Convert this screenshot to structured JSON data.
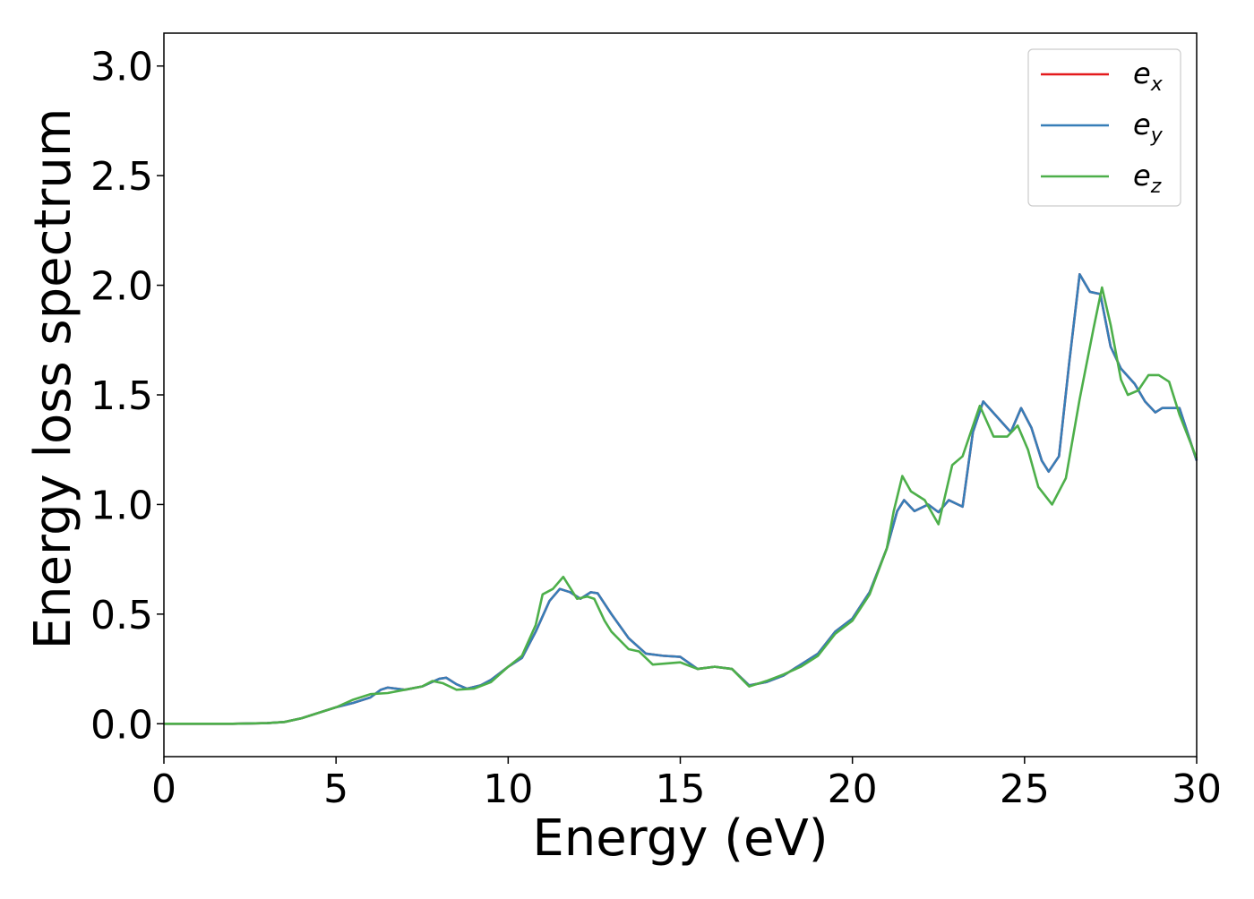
{
  "chart_data": {
    "type": "line",
    "xlabel": "Energy (eV)",
    "ylabel": "Energy loss spectrum",
    "xlim": [
      0,
      30
    ],
    "ylim": [
      -0.15,
      3.15
    ],
    "xticks": [
      0,
      5,
      10,
      15,
      20,
      25,
      30
    ],
    "yticks": [
      0.0,
      0.5,
      1.0,
      1.5,
      2.0,
      2.5,
      3.0
    ],
    "xtick_labels": [
      "0",
      "5",
      "10",
      "15",
      "20",
      "25",
      "30"
    ],
    "ytick_labels": [
      "0.0",
      "0.5",
      "1.0",
      "1.5",
      "2.0",
      "2.5",
      "3.0"
    ],
    "grid": false,
    "legend_position": "top-right",
    "series": [
      {
        "name": "e",
        "subscript": "x",
        "color": "#e41a1c",
        "points": [
          [
            0,
            0
          ],
          [
            2,
            0
          ],
          [
            3,
            0.003
          ],
          [
            3.5,
            0.008
          ],
          [
            4,
            0.025
          ],
          [
            4.5,
            0.05
          ],
          [
            5,
            0.075
          ],
          [
            5.5,
            0.095
          ],
          [
            6,
            0.12
          ],
          [
            6.3,
            0.155
          ],
          [
            6.5,
            0.165
          ],
          [
            7,
            0.155
          ],
          [
            7.5,
            0.17
          ],
          [
            8,
            0.205
          ],
          [
            8.2,
            0.21
          ],
          [
            8.5,
            0.18
          ],
          [
            8.8,
            0.16
          ],
          [
            9.2,
            0.175
          ],
          [
            9.5,
            0.2
          ],
          [
            10,
            0.26
          ],
          [
            10.4,
            0.3
          ],
          [
            10.8,
            0.42
          ],
          [
            11.2,
            0.56
          ],
          [
            11.5,
            0.615
          ],
          [
            11.8,
            0.6
          ],
          [
            12.1,
            0.57
          ],
          [
            12.4,
            0.6
          ],
          [
            12.6,
            0.595
          ],
          [
            13,
            0.5
          ],
          [
            13.5,
            0.39
          ],
          [
            14,
            0.32
          ],
          [
            14.5,
            0.31
          ],
          [
            15,
            0.305
          ],
          [
            15.5,
            0.25
          ],
          [
            16,
            0.26
          ],
          [
            16.5,
            0.25
          ],
          [
            17,
            0.175
          ],
          [
            17.5,
            0.19
          ],
          [
            18,
            0.22
          ],
          [
            18.5,
            0.27
          ],
          [
            19,
            0.32
          ],
          [
            19.5,
            0.42
          ],
          [
            20,
            0.48
          ],
          [
            20.5,
            0.6
          ],
          [
            21,
            0.8
          ],
          [
            21.3,
            0.97
          ],
          [
            21.5,
            1.02
          ],
          [
            21.8,
            0.97
          ],
          [
            22.2,
            1.0
          ],
          [
            22.5,
            0.965
          ],
          [
            22.8,
            1.02
          ],
          [
            23.2,
            0.99
          ],
          [
            23.5,
            1.33
          ],
          [
            23.8,
            1.47
          ],
          [
            24.2,
            1.4
          ],
          [
            24.6,
            1.33
          ],
          [
            24.9,
            1.44
          ],
          [
            25.2,
            1.35
          ],
          [
            25.5,
            1.2
          ],
          [
            25.7,
            1.15
          ],
          [
            26,
            1.22
          ],
          [
            26.3,
            1.65
          ],
          [
            26.6,
            2.05
          ],
          [
            26.9,
            1.97
          ],
          [
            27.2,
            1.96
          ],
          [
            27.5,
            1.72
          ],
          [
            27.8,
            1.62
          ],
          [
            28.2,
            1.55
          ],
          [
            28.5,
            1.47
          ],
          [
            28.8,
            1.42
          ],
          [
            29,
            1.44
          ],
          [
            29.5,
            1.44
          ],
          [
            30,
            1.2
          ]
        ]
      },
      {
        "name": "e",
        "subscript": "y",
        "color": "#377eb8",
        "points": [
          [
            0,
            0
          ],
          [
            2,
            0
          ],
          [
            3,
            0.003
          ],
          [
            3.5,
            0.008
          ],
          [
            4,
            0.025
          ],
          [
            4.5,
            0.05
          ],
          [
            5,
            0.075
          ],
          [
            5.5,
            0.095
          ],
          [
            6,
            0.12
          ],
          [
            6.3,
            0.155
          ],
          [
            6.5,
            0.165
          ],
          [
            7,
            0.155
          ],
          [
            7.5,
            0.17
          ],
          [
            8,
            0.205
          ],
          [
            8.2,
            0.21
          ],
          [
            8.5,
            0.18
          ],
          [
            8.8,
            0.16
          ],
          [
            9.2,
            0.175
          ],
          [
            9.5,
            0.2
          ],
          [
            10,
            0.26
          ],
          [
            10.4,
            0.3
          ],
          [
            10.8,
            0.42
          ],
          [
            11.2,
            0.56
          ],
          [
            11.5,
            0.615
          ],
          [
            11.8,
            0.6
          ],
          [
            12.1,
            0.57
          ],
          [
            12.4,
            0.6
          ],
          [
            12.6,
            0.595
          ],
          [
            13,
            0.5
          ],
          [
            13.5,
            0.39
          ],
          [
            14,
            0.32
          ],
          [
            14.5,
            0.31
          ],
          [
            15,
            0.305
          ],
          [
            15.5,
            0.25
          ],
          [
            16,
            0.26
          ],
          [
            16.5,
            0.25
          ],
          [
            17,
            0.175
          ],
          [
            17.5,
            0.19
          ],
          [
            18,
            0.22
          ],
          [
            18.5,
            0.27
          ],
          [
            19,
            0.32
          ],
          [
            19.5,
            0.42
          ],
          [
            20,
            0.48
          ],
          [
            20.5,
            0.6
          ],
          [
            21,
            0.8
          ],
          [
            21.3,
            0.97
          ],
          [
            21.5,
            1.02
          ],
          [
            21.8,
            0.97
          ],
          [
            22.2,
            1.0
          ],
          [
            22.5,
            0.965
          ],
          [
            22.8,
            1.02
          ],
          [
            23.2,
            0.99
          ],
          [
            23.5,
            1.33
          ],
          [
            23.8,
            1.47
          ],
          [
            24.2,
            1.4
          ],
          [
            24.6,
            1.33
          ],
          [
            24.9,
            1.44
          ],
          [
            25.2,
            1.35
          ],
          [
            25.5,
            1.2
          ],
          [
            25.7,
            1.15
          ],
          [
            26,
            1.22
          ],
          [
            26.3,
            1.65
          ],
          [
            26.6,
            2.05
          ],
          [
            26.9,
            1.97
          ],
          [
            27.2,
            1.96
          ],
          [
            27.5,
            1.72
          ],
          [
            27.8,
            1.62
          ],
          [
            28.2,
            1.55
          ],
          [
            28.5,
            1.47
          ],
          [
            28.8,
            1.42
          ],
          [
            29,
            1.44
          ],
          [
            29.5,
            1.44
          ],
          [
            30,
            1.2
          ]
        ]
      },
      {
        "name": "e",
        "subscript": "z",
        "color": "#4daf4a",
        "points": [
          [
            0,
            0
          ],
          [
            2,
            0
          ],
          [
            3,
            0.003
          ],
          [
            3.5,
            0.008
          ],
          [
            4,
            0.025
          ],
          [
            4.5,
            0.05
          ],
          [
            5,
            0.075
          ],
          [
            5.5,
            0.11
          ],
          [
            6,
            0.135
          ],
          [
            6.5,
            0.14
          ],
          [
            7,
            0.155
          ],
          [
            7.5,
            0.17
          ],
          [
            7.8,
            0.195
          ],
          [
            8.1,
            0.185
          ],
          [
            8.5,
            0.155
          ],
          [
            9,
            0.16
          ],
          [
            9.5,
            0.19
          ],
          [
            10,
            0.26
          ],
          [
            10.4,
            0.31
          ],
          [
            10.8,
            0.45
          ],
          [
            11,
            0.59
          ],
          [
            11.3,
            0.615
          ],
          [
            11.6,
            0.67
          ],
          [
            11.8,
            0.62
          ],
          [
            12,
            0.57
          ],
          [
            12.3,
            0.58
          ],
          [
            12.5,
            0.57
          ],
          [
            12.8,
            0.47
          ],
          [
            13,
            0.42
          ],
          [
            13.5,
            0.34
          ],
          [
            13.8,
            0.33
          ],
          [
            14.2,
            0.27
          ],
          [
            14.6,
            0.275
          ],
          [
            15,
            0.28
          ],
          [
            15.5,
            0.25
          ],
          [
            16,
            0.26
          ],
          [
            16.5,
            0.25
          ],
          [
            17,
            0.17
          ],
          [
            17.5,
            0.195
          ],
          [
            18,
            0.225
          ],
          [
            18.5,
            0.26
          ],
          [
            19,
            0.31
          ],
          [
            19.5,
            0.41
          ],
          [
            20,
            0.47
          ],
          [
            20.5,
            0.59
          ],
          [
            21,
            0.8
          ],
          [
            21.2,
            0.97
          ],
          [
            21.45,
            1.13
          ],
          [
            21.7,
            1.06
          ],
          [
            22.1,
            1.02
          ],
          [
            22.5,
            0.91
          ],
          [
            22.9,
            1.18
          ],
          [
            23.2,
            1.22
          ],
          [
            23.7,
            1.45
          ],
          [
            24.1,
            1.31
          ],
          [
            24.5,
            1.31
          ],
          [
            24.8,
            1.36
          ],
          [
            25.1,
            1.25
          ],
          [
            25.4,
            1.08
          ],
          [
            25.8,
            1.0
          ],
          [
            26.2,
            1.12
          ],
          [
            26.6,
            1.48
          ],
          [
            27,
            1.8
          ],
          [
            27.25,
            1.99
          ],
          [
            27.5,
            1.82
          ],
          [
            27.8,
            1.57
          ],
          [
            28,
            1.5
          ],
          [
            28.3,
            1.52
          ],
          [
            28.6,
            1.59
          ],
          [
            28.9,
            1.59
          ],
          [
            29.2,
            1.56
          ],
          [
            29.5,
            1.41
          ],
          [
            30,
            1.21
          ]
        ]
      }
    ]
  }
}
